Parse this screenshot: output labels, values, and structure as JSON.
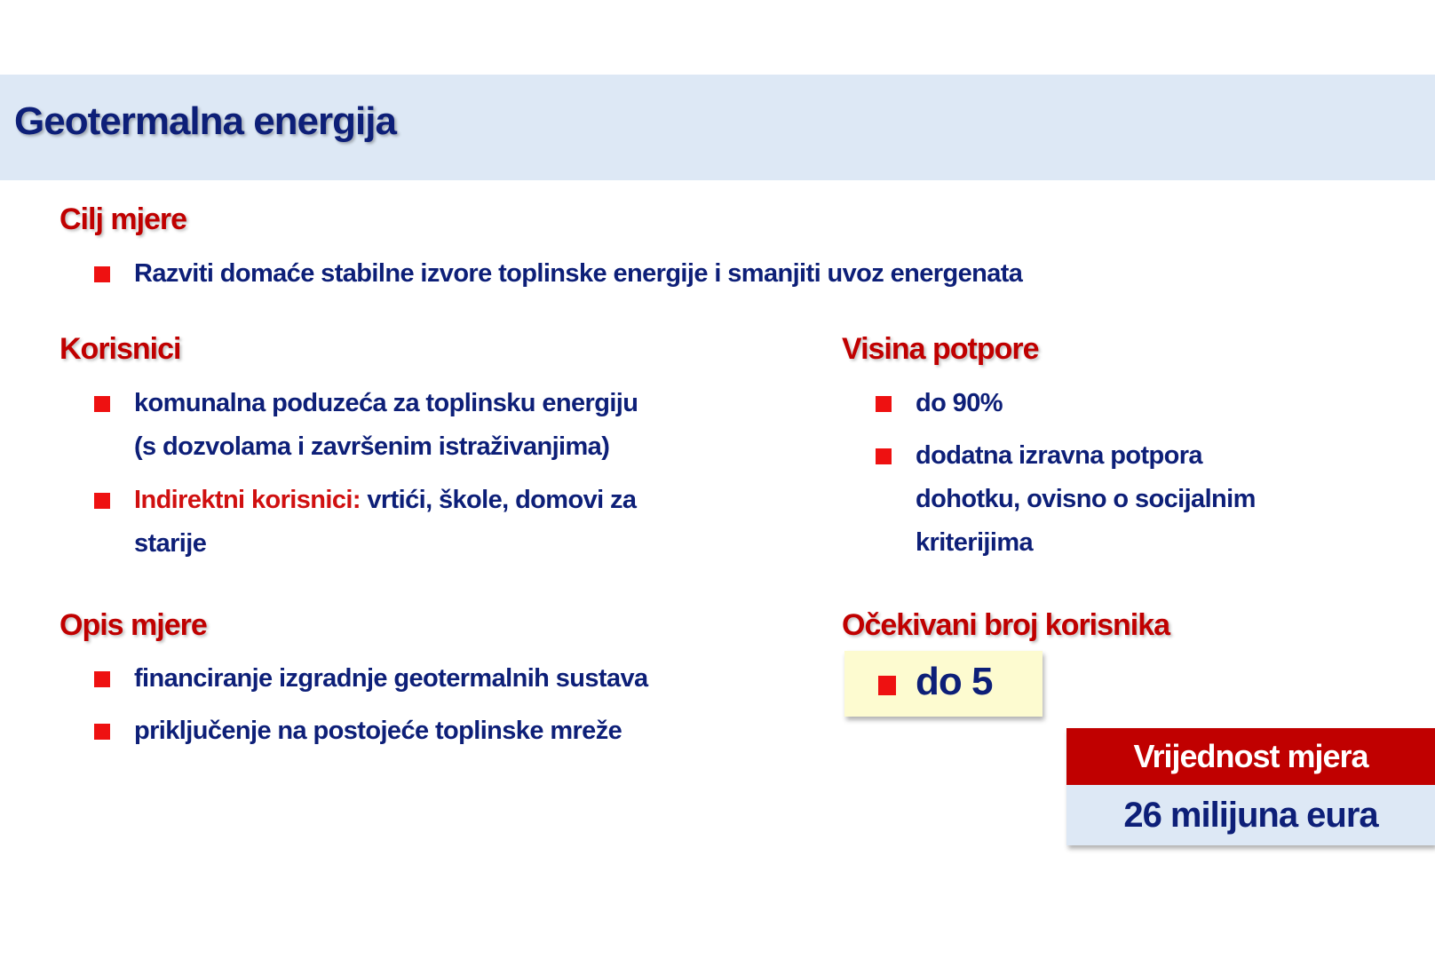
{
  "title": "Geotermalna energija",
  "cilj": {
    "heading": "Cilj mjere",
    "items": [
      "Razviti domaće stabilne izvore toplinske energije i smanjiti uvoz energenata"
    ]
  },
  "korisnici": {
    "heading": "Korisnici",
    "items": [
      {
        "line1": "komunalna poduzeća za toplinsku energiju",
        "line2": "(s dozvolama i završenim istraživanjima)"
      },
      {
        "label": "Indirektni korisnici:",
        "line1": " vrtići, škole, domovi za",
        "line2": "starije"
      }
    ]
  },
  "visina": {
    "heading": "Visina potpore",
    "items": [
      {
        "line1": "do 90%"
      },
      {
        "line1": "dodatna izravna potpora",
        "line2": "dohotku, ovisno o socijalnim",
        "line3": "kriterijima"
      }
    ]
  },
  "opis": {
    "heading": "Opis mjere",
    "items": [
      "financiranje izgradnje geotermalnih sustava",
      "priključenje na postojeće toplinske mreže"
    ]
  },
  "ocekivani": {
    "heading": "Očekivani broj korisnika",
    "value": "do 5"
  },
  "vrijednost": {
    "label": "Vrijednost mjera",
    "value": "26 milijuna eura"
  },
  "colors": {
    "navy": "#0d1f78",
    "red": "#c00000",
    "bullet": "#ee1111",
    "band": "#dde8f5",
    "highlight": "#fdfbd0"
  }
}
